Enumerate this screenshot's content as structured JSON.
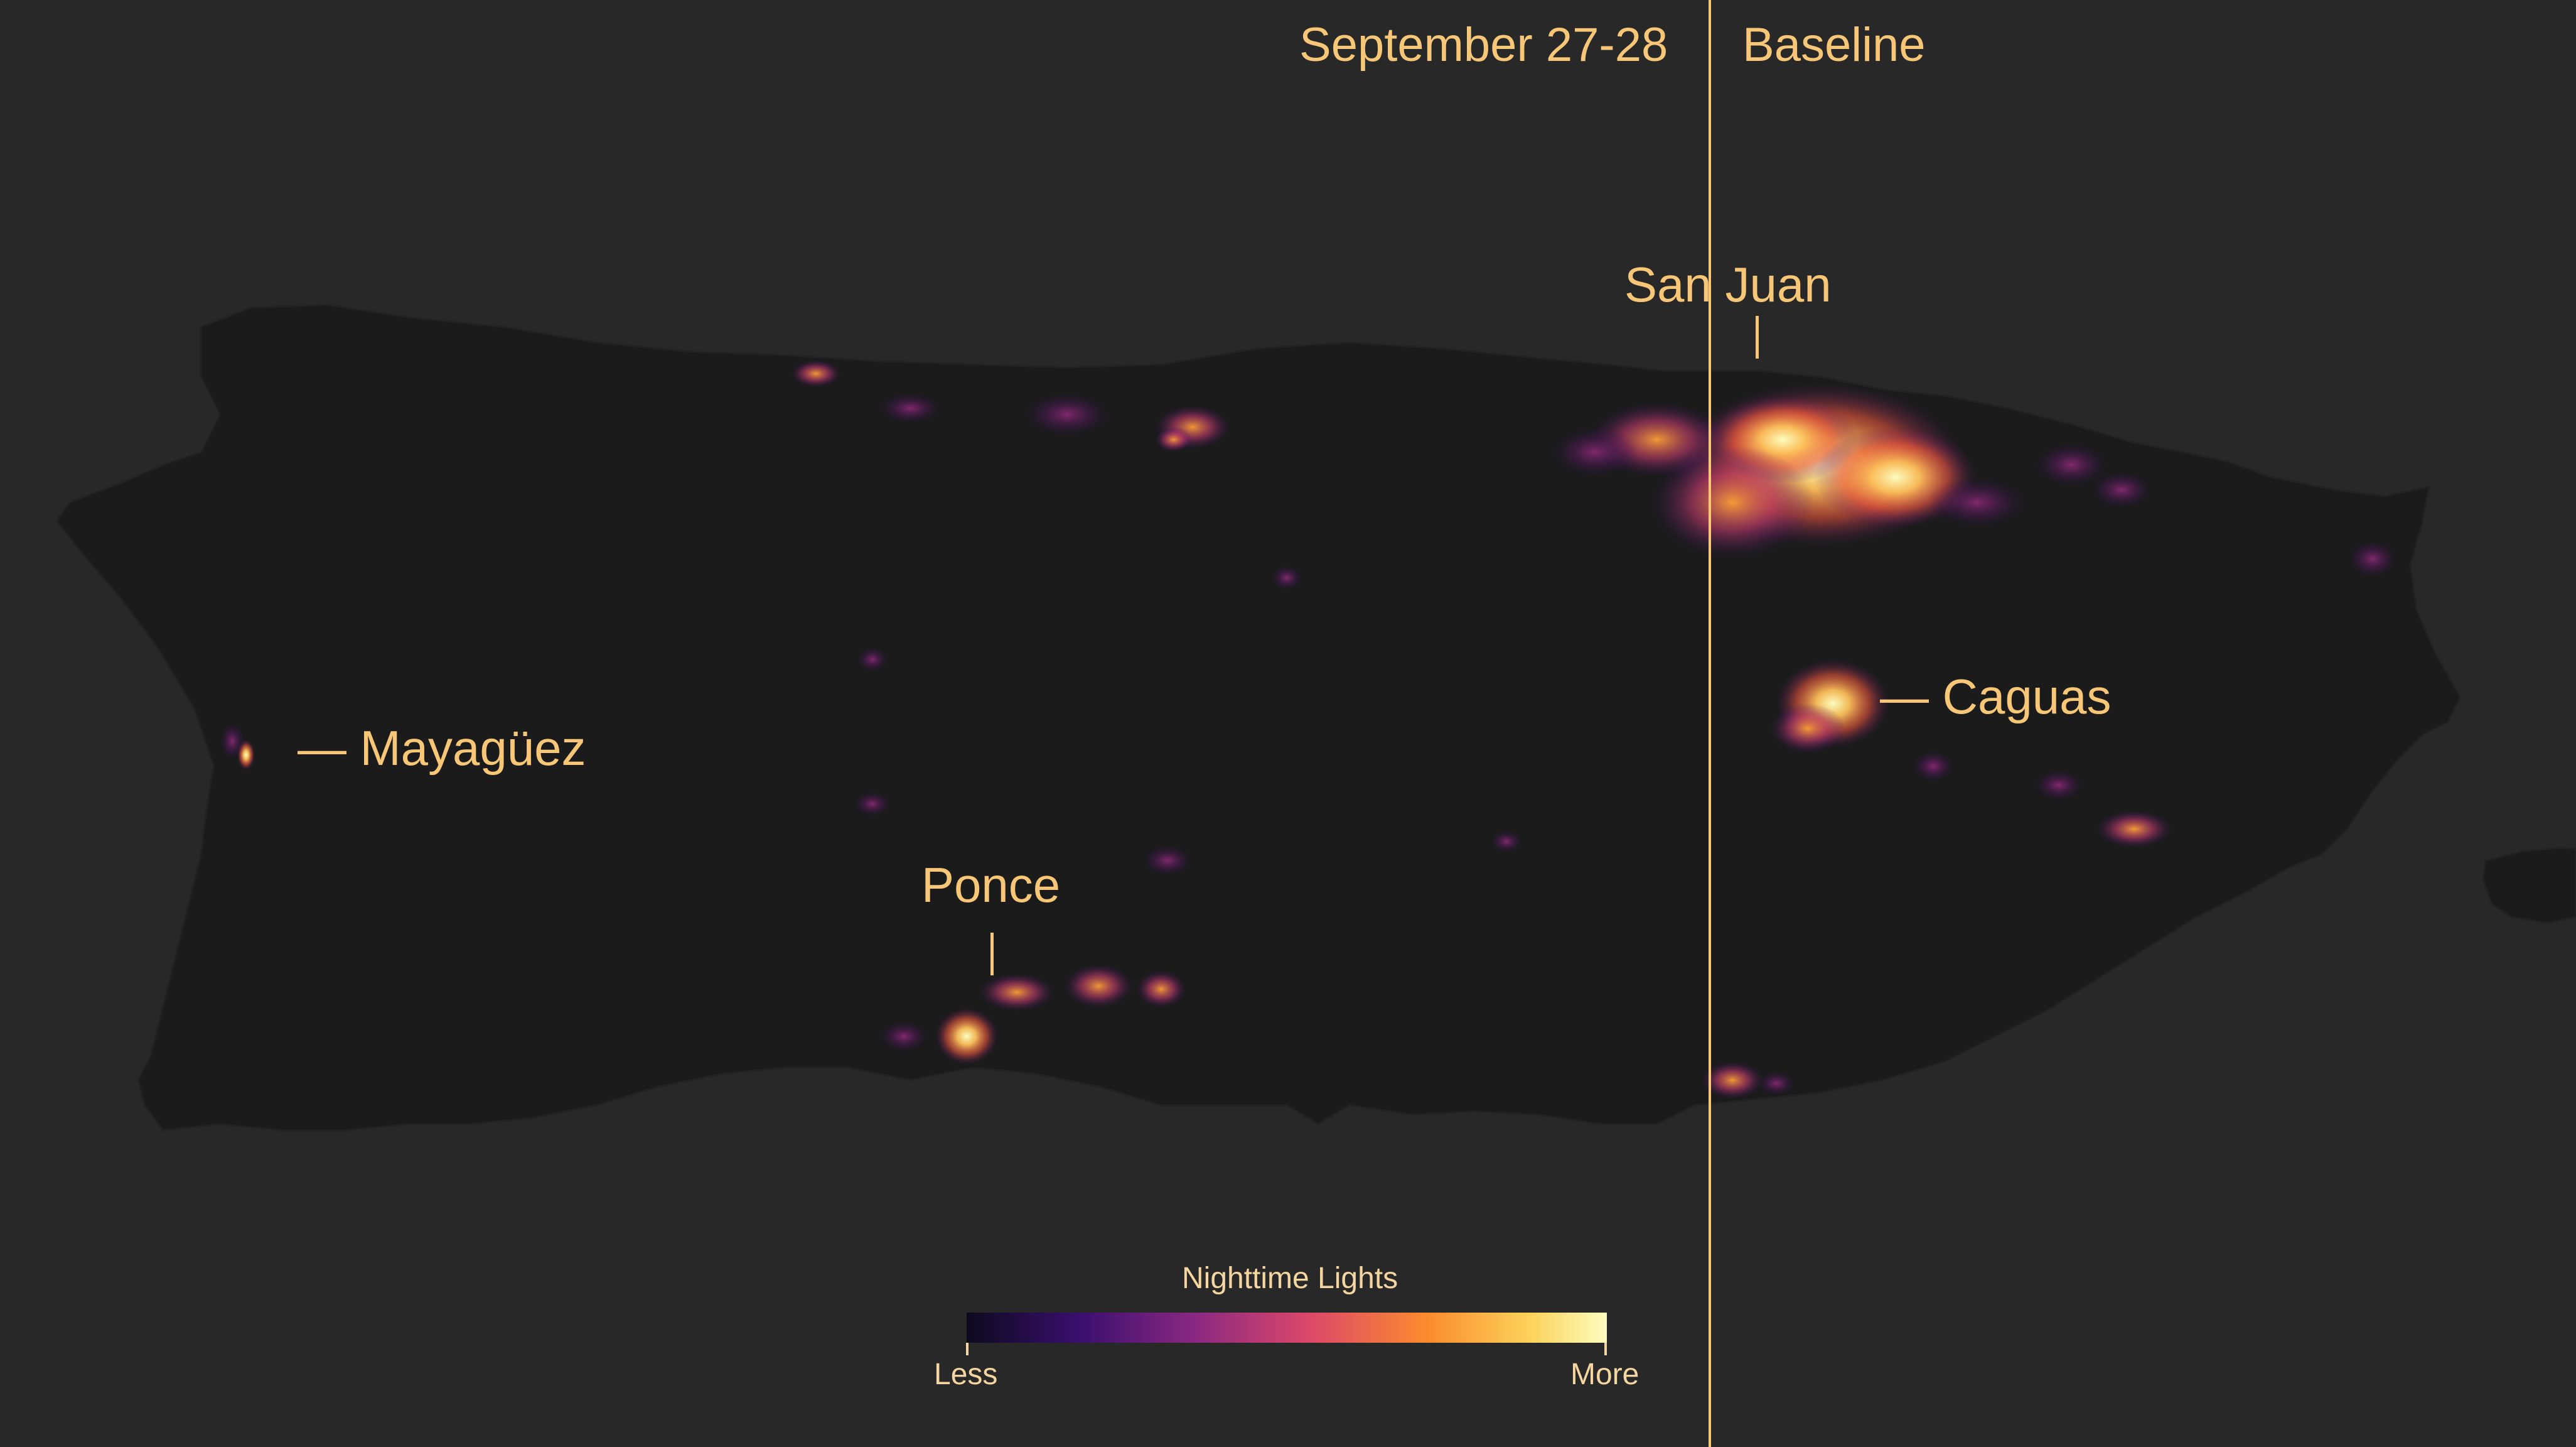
{
  "header": {
    "left_label": "September 27-28",
    "right_label": "Baseline"
  },
  "cities": {
    "san_juan": "San Juan",
    "caguas": "— Caguas",
    "mayaguez": "— Mayagüez",
    "ponce": "Ponce"
  },
  "legend": {
    "title": "Nighttime Lights",
    "min_label": "Less",
    "max_label": "More",
    "colors": [
      "#0d0a1e",
      "#3b0f70",
      "#8c2981",
      "#de4968",
      "#fb8c2e",
      "#fcd25a",
      "#fcfdbf"
    ]
  },
  "colors": {
    "background": "#282828",
    "land": "#1a1a1a",
    "accent": "#f7c777"
  }
}
